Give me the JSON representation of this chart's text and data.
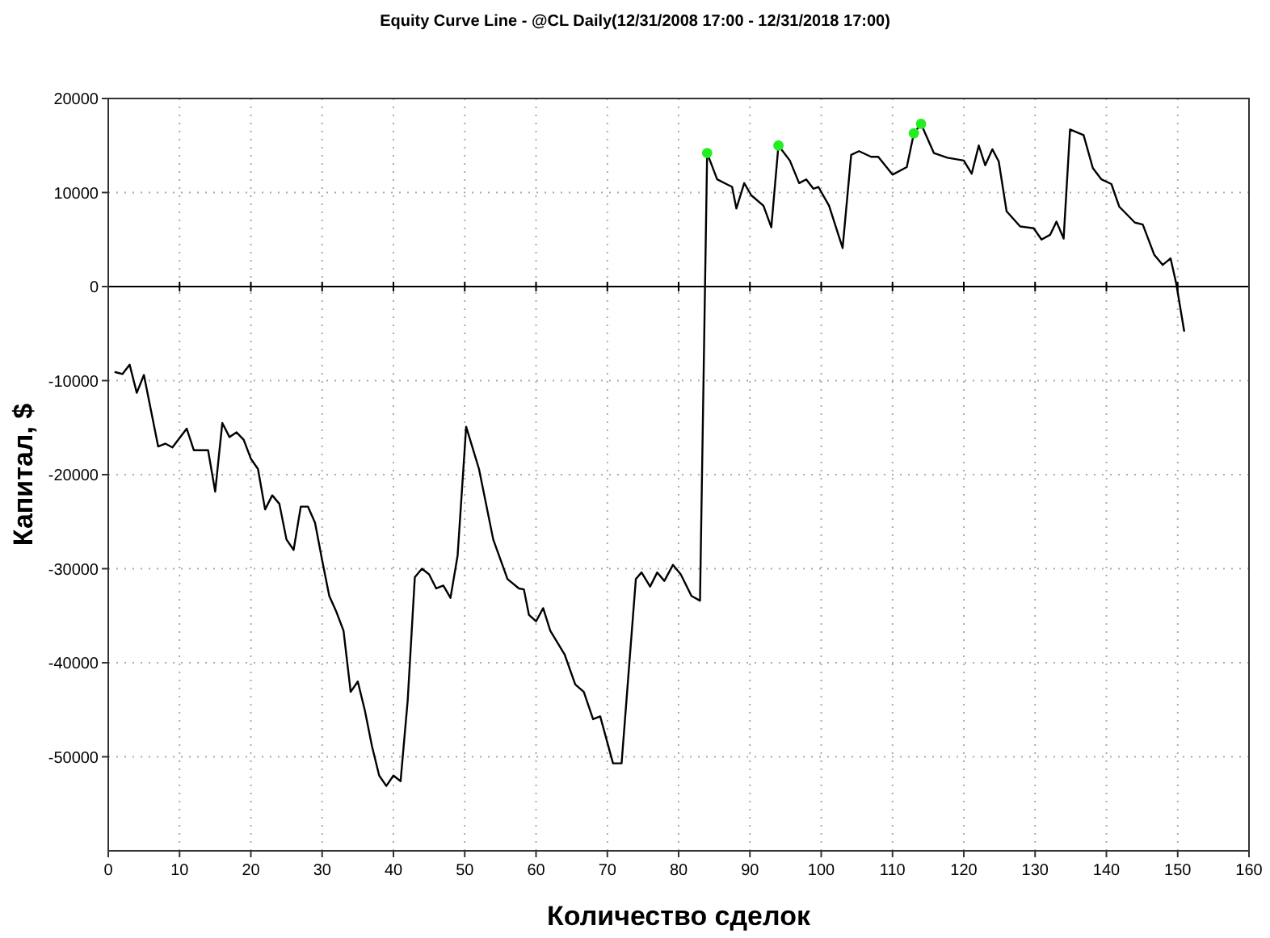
{
  "chart_data": {
    "type": "line",
    "title": "Equity Curve Line - @CL Daily(12/31/2008 17:00 - 12/31/2018 17:00)",
    "xlabel": "Количество сделок",
    "ylabel": "Капитал, $",
    "xlim": [
      0,
      160
    ],
    "xticks": [
      0,
      10,
      20,
      30,
      40,
      50,
      60,
      70,
      80,
      90,
      100,
      110,
      120,
      130,
      140,
      150,
      160
    ],
    "ylim": [
      -60000,
      20000
    ],
    "yticks": [
      -50000,
      -40000,
      -30000,
      -20000,
      -10000,
      0,
      10000,
      20000
    ],
    "grid": true,
    "ref_lines": [
      {
        "axis": "y",
        "value": 0,
        "color": "#000000"
      }
    ],
    "series": [
      {
        "color": "#000000",
        "x": [
          1,
          2,
          3,
          4,
          5,
          7,
          8,
          9,
          11,
          12,
          14,
          15,
          16,
          17,
          18,
          19,
          20,
          21,
          22,
          23,
          24,
          25,
          26,
          27,
          28,
          29,
          30,
          31,
          32,
          33,
          34,
          35,
          36,
          37,
          38,
          39,
          40,
          41,
          42,
          43,
          44,
          45,
          46,
          47,
          48,
          49,
          50.2,
          51,
          52,
          54,
          56,
          57.6,
          58.3,
          59,
          60,
          61,
          62,
          64,
          65.5,
          66.7,
          68,
          69,
          70.8,
          72,
          74,
          74.8,
          76,
          77,
          78,
          79.2,
          80.3,
          81.8,
          83,
          84,
          85.4,
          86.7,
          87.5,
          88.1,
          89.2,
          90.2,
          91.9,
          93,
          94,
          95.6,
          96.9,
          97.9,
          98.9,
          99.6,
          101.1,
          103,
          104.2,
          105.3,
          107,
          108,
          110,
          112,
          113,
          114,
          115.8,
          117.7,
          120,
          121.1,
          122.1,
          123,
          124,
          124.9,
          126,
          127.9,
          129.8,
          130.9,
          132.1,
          133,
          134,
          134.9,
          136.8,
          138.1,
          139.3,
          140.7,
          141.8,
          144,
          145.1,
          146.7,
          147.9,
          149,
          149.8,
          150.9
        ],
        "values": [
          -9100,
          -9300,
          -8300,
          -11300,
          -9400,
          -17000,
          -16700,
          -17100,
          -15100,
          -17400,
          -17400,
          -21800,
          -14500,
          -16000,
          -15500,
          -16300,
          -18300,
          -19400,
          -23700,
          -22200,
          -23100,
          -26900,
          -28000,
          -23400,
          -23400,
          -25100,
          -29100,
          -32900,
          -34600,
          -36600,
          -43100,
          -42000,
          -45100,
          -48900,
          -52000,
          -53100,
          -52000,
          -52600,
          -44000,
          -30900,
          -30000,
          -30600,
          -32100,
          -31800,
          -33100,
          -28600,
          -14900,
          -16900,
          -19400,
          -26900,
          -31100,
          -32100,
          -32200,
          -34900,
          -35600,
          -34200,
          -36600,
          -39100,
          -42300,
          -43100,
          -46000,
          -45700,
          -50700,
          -50700,
          -31100,
          -30400,
          -31900,
          -30400,
          -31300,
          -29600,
          -30600,
          -32900,
          -33400,
          14200,
          11400,
          10900,
          10600,
          8300,
          11000,
          9700,
          8600,
          6300,
          15000,
          13400,
          11000,
          11400,
          10400,
          10600,
          8600,
          4100,
          14000,
          14400,
          13800,
          13800,
          11900,
          12700,
          16300,
          17300,
          14200,
          13700,
          13400,
          12000,
          15000,
          12900,
          14600,
          13300,
          8000,
          6400,
          6200,
          5000,
          5500,
          6900,
          5100,
          16700,
          16100,
          12600,
          11400,
          10900,
          8500,
          6800,
          6600,
          3400,
          2300,
          3000,
          300,
          -4700
        ]
      },
      {
        "type": "scatter",
        "color": "#22ee22",
        "marker": "circle",
        "x": [
          84,
          94,
          113,
          114
        ],
        "values": [
          14200,
          15000,
          16300,
          17300
        ]
      }
    ]
  }
}
